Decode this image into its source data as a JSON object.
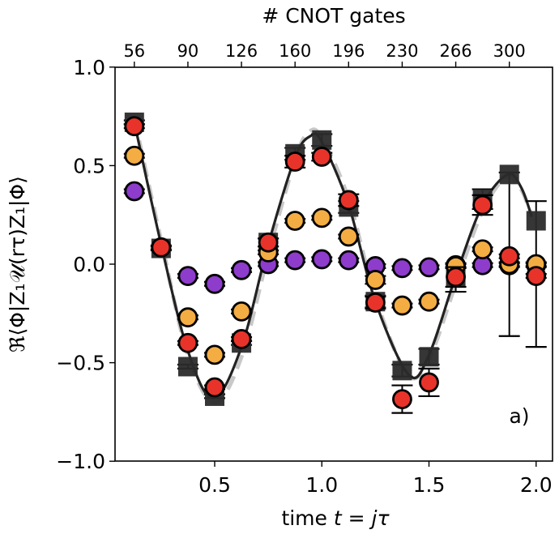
{
  "chart_data": {
    "type": "scatter",
    "title": "",
    "xlabel": "time t = jτ",
    "xlabel_parts": [
      "time ",
      "t",
      " = ",
      "j",
      "τ"
    ],
    "ylabel": "ℜ⟨Φ|Z₁𝒰(rτ)Z₁|Φ⟩",
    "top_xlabel": "# CNOT gates",
    "panel_label": "a)",
    "xlim": [
      0.0,
      2.1
    ],
    "ylim": [
      -1.0,
      1.0
    ],
    "grid": false,
    "legend": "none",
    "x_ticks": [
      0.5,
      1.0,
      1.5,
      2.0
    ],
    "x_tick_labels": [
      "0.5",
      "1.0",
      "1.5",
      "2.0"
    ],
    "y_ticks": [
      1.0,
      0.5,
      0.0,
      -0.5,
      -1.0
    ],
    "y_tick_labels": [
      "1.0",
      "0.5",
      "0.0",
      "−0.5",
      "−1.0"
    ],
    "top_ticks": [
      0.125,
      0.375,
      0.625,
      0.875,
      1.125,
      1.375,
      1.625,
      1.875
    ],
    "top_tick_labels": [
      "56",
      "90",
      "126",
      "160",
      "196",
      "230",
      "266",
      "300"
    ],
    "x": [
      0.125,
      0.25,
      0.375,
      0.5,
      0.625,
      0.75,
      0.875,
      1.0,
      1.125,
      1.25,
      1.375,
      1.5,
      1.625,
      1.75,
      1.875,
      2.0
    ],
    "series": [
      {
        "name": "reference (squares)",
        "marker": "square",
        "color": "#2b2b2b",
        "values": [
          0.72,
          0.08,
          -0.52,
          -0.67,
          -0.4,
          0.11,
          0.56,
          0.63,
          0.29,
          -0.19,
          -0.54,
          -0.47,
          -0.07,
          0.33,
          0.455,
          0.22
        ],
        "errors": [
          0.01,
          0.01,
          0.01,
          0.01,
          0.01,
          0.02,
          0.03,
          0.03,
          0.03,
          0.03,
          0.03,
          0.04,
          0.07,
          0.05,
          0.82,
          0.74
        ],
        "errors_upper": [
          0.01,
          0.01,
          0.01,
          0.01,
          0.01,
          0.02,
          0.03,
          0.03,
          0.03,
          0.03,
          0.03,
          0.04,
          0.05,
          0.05,
          0.01,
          0.1
        ],
        "errors_lower": [
          0.01,
          0.01,
          0.01,
          0.01,
          0.01,
          0.02,
          0.03,
          0.03,
          0.03,
          0.03,
          0.03,
          0.04,
          0.07,
          0.05,
          0.82,
          0.64
        ]
      },
      {
        "name": "purple",
        "marker": "circle",
        "color": "#8e3ccb",
        "values": [
          0.37,
          null,
          -0.06,
          -0.1,
          -0.03,
          0.0,
          0.02,
          0.025,
          0.02,
          -0.01,
          -0.02,
          -0.016,
          -0.005,
          -0.005,
          -0.005,
          -0.005
        ],
        "errors": [
          0.01,
          0.01,
          0.01,
          0.01,
          0.01,
          0.01,
          0.01,
          0.01,
          0.01,
          0.01,
          0.01,
          0.01,
          0.01,
          0.01,
          0.01,
          0.01
        ]
      },
      {
        "name": "orange",
        "marker": "circle",
        "color": "#f4ad42",
        "values": [
          0.55,
          null,
          -0.27,
          -0.46,
          -0.24,
          0.06,
          0.22,
          0.235,
          0.14,
          -0.08,
          -0.21,
          -0.19,
          -0.01,
          0.075,
          0.0,
          0.0
        ],
        "errors": [
          0.01,
          0.01,
          0.01,
          0.01,
          0.01,
          0.01,
          0.01,
          0.01,
          0.01,
          0.02,
          0.01,
          0.01,
          0.01,
          0.01,
          0.01,
          0.01
        ]
      },
      {
        "name": "red",
        "marker": "circle",
        "color": "#e8332a",
        "values": [
          0.7,
          0.085,
          -0.4,
          -0.625,
          -0.38,
          0.11,
          0.52,
          0.545,
          0.325,
          -0.195,
          -0.685,
          -0.6,
          -0.065,
          0.3,
          0.04,
          -0.06
        ],
        "errors": [
          0.01,
          0.01,
          0.01,
          0.01,
          0.01,
          0.02,
          0.03,
          0.02,
          0.03,
          0.03,
          0.07,
          0.07,
          0.05,
          0.05,
          0.01,
          0.01
        ]
      }
    ],
    "fit_curve": {
      "name": "fit",
      "color": "#222222",
      "style": "solid",
      "points": [
        [
          0.125,
          0.72
        ],
        [
          0.25,
          0.1
        ],
        [
          0.375,
          -0.44
        ],
        [
          0.494,
          -0.68
        ],
        [
          0.625,
          -0.42
        ],
        [
          0.75,
          0.1
        ],
        [
          0.875,
          0.54
        ],
        [
          0.947,
          0.65
        ],
        [
          1.0,
          0.62
        ],
        [
          1.125,
          0.3
        ],
        [
          1.25,
          -0.19
        ],
        [
          1.407,
          -0.563
        ],
        [
          1.5,
          -0.46
        ],
        [
          1.625,
          -0.06
        ],
        [
          1.75,
          0.3
        ],
        [
          1.867,
          0.455
        ],
        [
          1.93,
          0.39
        ],
        [
          1.98,
          0.24
        ]
      ]
    },
    "reference_curve": {
      "name": "exact",
      "color": "#c8c8c8",
      "style": "dashed",
      "points": [
        [
          0.125,
          0.74
        ],
        [
          0.25,
          0.12
        ],
        [
          0.375,
          -0.46
        ],
        [
          0.5,
          -0.7
        ],
        [
          0.625,
          -0.47
        ],
        [
          0.75,
          0.05
        ],
        [
          0.875,
          0.53
        ],
        [
          0.94,
          0.67
        ],
        [
          1.0,
          0.64
        ],
        [
          1.125,
          0.33
        ],
        [
          1.25,
          -0.17
        ],
        [
          1.4,
          -0.56
        ],
        [
          1.5,
          -0.48
        ],
        [
          1.625,
          -0.1
        ],
        [
          1.75,
          0.27
        ],
        [
          1.86,
          0.44
        ],
        [
          1.93,
          0.38
        ],
        [
          1.98,
          0.24
        ]
      ]
    }
  }
}
